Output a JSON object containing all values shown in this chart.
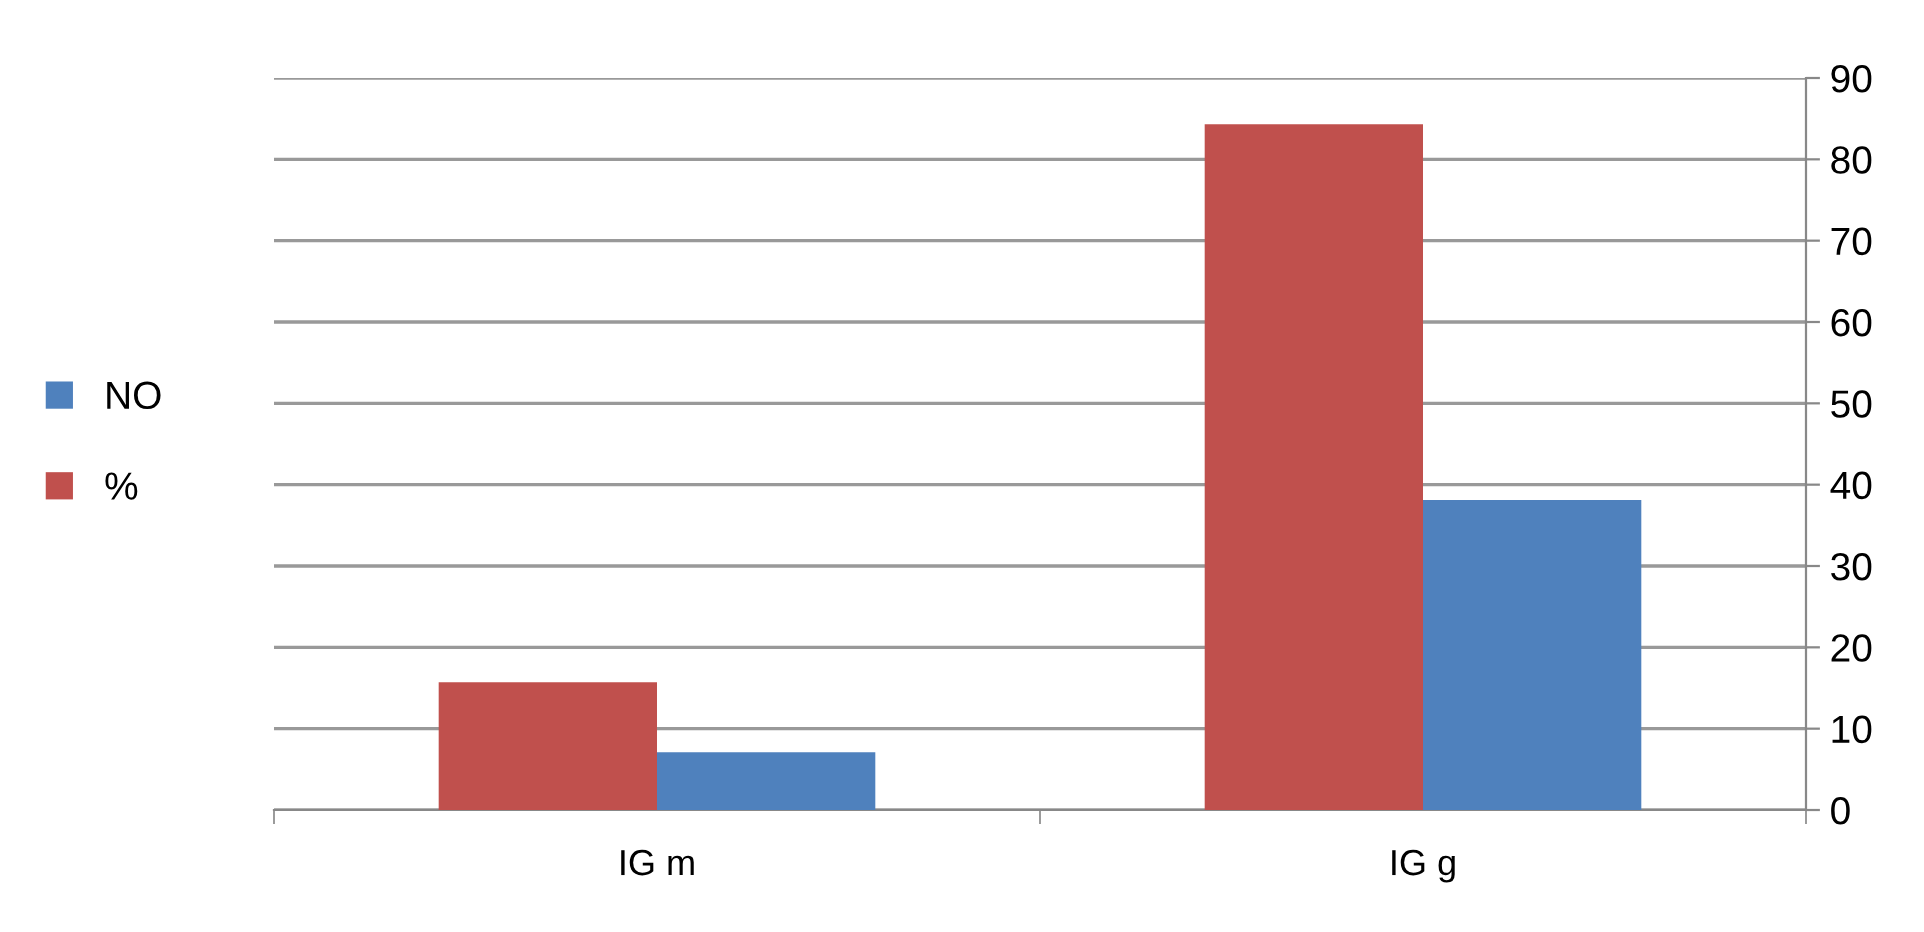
{
  "chart_data": {
    "type": "bar",
    "categories": [
      "IG m",
      "IG g"
    ],
    "series": [
      {
        "name": "%",
        "color": "#c0504d",
        "values": [
          15.7,
          84.3
        ]
      },
      {
        "name": "NO",
        "color": "#4f81bd",
        "values": [
          7.1,
          38.1
        ]
      }
    ],
    "ylim": [
      0,
      90
    ],
    "yticks": [
      0,
      10,
      20,
      30,
      40,
      50,
      60,
      70,
      80,
      90
    ],
    "grid": "y",
    "legend": "left"
  }
}
